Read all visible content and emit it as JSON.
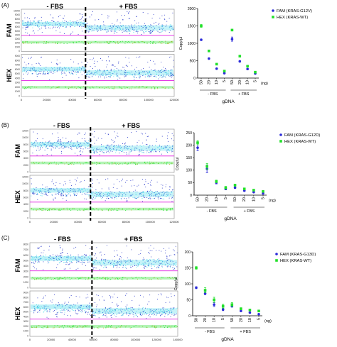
{
  "panels": [
    {
      "label": "(A)",
      "ddpcr": {
        "neg_label": "- FBS",
        "pos_label": "+ FBS",
        "channels": [
          {
            "name": "FAM",
            "yticks": [
              "0",
              "1000",
              "2000",
              "3000",
              "4000",
              "5000",
              "6000",
              "7000",
              "8000",
              "9000",
              "10000"
            ]
          },
          {
            "name": "HEX",
            "yticks": [
              "0",
              "1000",
              "2000",
              "3000",
              "4000",
              "5000",
              "6000",
              "7000",
              "8000",
              "9000"
            ]
          }
        ],
        "xticks": [
          "0",
          "20000",
          "40000",
          "60000",
          "80000",
          "100000",
          "120000"
        ]
      }
    },
    {
      "label": "(B)",
      "ddpcr": {
        "neg_label": "- FBS",
        "pos_label": "+ FBS",
        "channels": [
          {
            "name": "FAM",
            "yticks": [
              "0",
              "2000",
              "4000",
              "6000",
              "8000",
              "10000",
              "12000"
            ]
          },
          {
            "name": "HEX",
            "yticks": [
              "0",
              "2000",
              "4000",
              "6000",
              "8000",
              "10000",
              "12000"
            ]
          }
        ],
        "xticks": [
          "0",
          "20000",
          "40000",
          "60000",
          "80000",
          "100000",
          "120000"
        ]
      }
    },
    {
      "label": "(C)",
      "ddpcr": {
        "neg_label": "- FBS",
        "pos_label": "+ FBS",
        "channels": [
          {
            "name": "FAM",
            "yticks": [
              "0",
              "1000",
              "2000",
              "3000",
              "4000",
              "5000",
              "6000",
              "7000",
              "8000"
            ]
          },
          {
            "name": "HEX",
            "yticks": [
              "0",
              "1000",
              "2000",
              "3000",
              "4000",
              "5000",
              "6000",
              "7000",
              "8000",
              "9000"
            ]
          }
        ],
        "xticks": [
          "0",
          "20000",
          "40000",
          "60000",
          "80000",
          "100000",
          "120000",
          "140000"
        ]
      }
    }
  ],
  "colors": {
    "fam": "#2b2bd9",
    "hex": "#22e02a",
    "droplet_neg": "#1f2fc8",
    "droplet_dense": "#40d8e8",
    "threshold": "#e020e0"
  },
  "chart_data": [
    {
      "type": "scatter",
      "panel": "A",
      "categories": [
        "50",
        "20",
        "10",
        "5",
        "50",
        "20",
        "10",
        "5"
      ],
      "group_labels": [
        "- FBS",
        "+ FBS"
      ],
      "xlabel": "gDNA",
      "xunit": "(ng)",
      "ylabel": "Copy/µl",
      "ylim": [
        0,
        2000
      ],
      "yticks": [
        0,
        500,
        1000,
        1500,
        2000
      ],
      "legend_position": "top-right",
      "series": [
        {
          "name": "FAM (KRAS-G12V)",
          "marker": "circle",
          "values": [
            1100,
            560,
            270,
            140,
            1120,
            480,
            260,
            130
          ],
          "err": [
            20,
            10,
            10,
            5,
            60,
            10,
            10,
            5
          ]
        },
        {
          "name": "HEX (KRAS-WT)",
          "marker": "square",
          "values": [
            1500,
            780,
            400,
            200,
            1380,
            630,
            340,
            170
          ],
          "err": [
            40,
            20,
            15,
            10,
            20,
            15,
            10,
            10
          ]
        }
      ]
    },
    {
      "type": "scatter",
      "panel": "B",
      "categories": [
        "50",
        "20",
        "10",
        "5",
        "50",
        "20",
        "10",
        "5"
      ],
      "group_labels": [
        "- FBS",
        "+ FBS"
      ],
      "xlabel": "gDNA",
      "xunit": "(ng)",
      "ylabel": "Copy/µl",
      "ylim": [
        0,
        250
      ],
      "yticks": [
        0,
        50,
        100,
        150,
        200,
        250
      ],
      "legend_position": "top-right",
      "series": [
        {
          "name": "FAM (KRAS-G12D)",
          "marker": "circle",
          "values": [
            190,
            105,
            50,
            25,
            30,
            18,
            12,
            7
          ],
          "err": [
            12,
            15,
            5,
            4,
            3,
            2,
            2,
            1
          ]
        },
        {
          "name": "HEX (KRAS-WT)",
          "marker": "square",
          "values": [
            210,
            115,
            55,
            30,
            40,
            25,
            20,
            15
          ],
          "err": [
            8,
            12,
            5,
            5,
            4,
            3,
            2,
            2
          ]
        }
      ]
    },
    {
      "type": "scatter",
      "panel": "C",
      "categories": [
        "50",
        "20",
        "10",
        "5",
        "50",
        "20",
        "10",
        "5"
      ],
      "group_labels": [
        "- FBS",
        "+ FBS"
      ],
      "xlabel": "gDNA",
      "xunit": "(ng)",
      "ylabel": "Copy/µl",
      "ylim": [
        0,
        200
      ],
      "yticks": [
        0,
        50,
        100,
        150,
        200
      ],
      "legend_position": "top-right",
      "series": [
        {
          "name": "FAM (KRAS-G13D)",
          "marker": "circle",
          "values": [
            88,
            70,
            35,
            20,
            30,
            15,
            10,
            5
          ],
          "err": [
            3,
            4,
            6,
            4,
            3,
            2,
            2,
            1
          ]
        },
        {
          "name": "HEX (KRAS-WT)",
          "marker": "square",
          "values": [
            150,
            80,
            50,
            30,
            35,
            22,
            18,
            15
          ],
          "err": [
            4,
            8,
            8,
            6,
            6,
            3,
            2,
            2
          ]
        }
      ]
    }
  ]
}
